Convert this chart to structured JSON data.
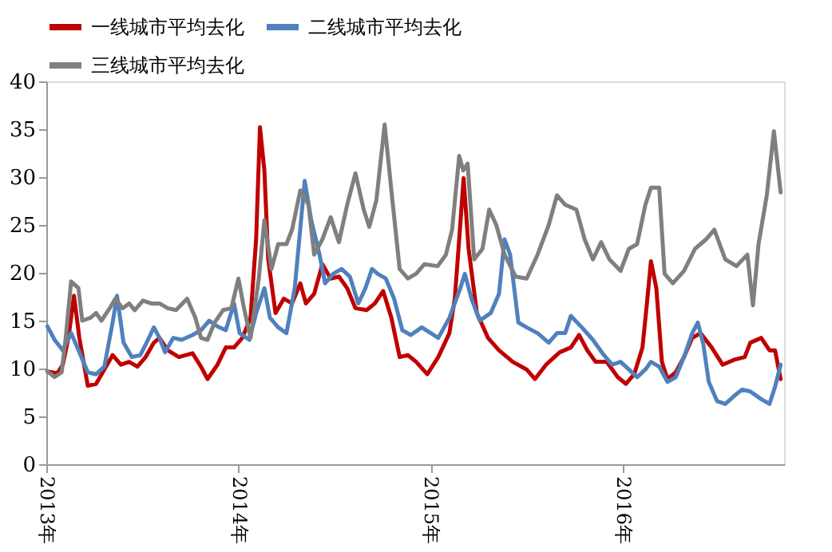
{
  "chart_data": {
    "type": "line",
    "xlim": [
      2013,
      2016.84
    ],
    "xticks": [
      {
        "value": 2013,
        "label": "2013年"
      },
      {
        "value": 2014,
        "label": "2014年"
      },
      {
        "value": 2015,
        "label": "2015年"
      },
      {
        "value": 2016,
        "label": "2016年"
      }
    ],
    "ylim": [
      0,
      40
    ],
    "yticks": [
      0,
      5,
      10,
      15,
      20,
      25,
      30,
      35,
      40
    ],
    "grid": false,
    "legend": "top",
    "line_style": "solid",
    "marker": "none",
    "series": [
      {
        "name": "一线城市平均去化",
        "color": "#c00000",
        "x": [
          2013.006,
          2013.057,
          2013.086,
          2013.115,
          2013.144,
          2013.172,
          2013.216,
          2013.259,
          2013.302,
          2013.345,
          2013.388,
          2013.431,
          2013.474,
          2013.517,
          2013.56,
          2013.589,
          2013.632,
          2013.69,
          2013.761,
          2013.805,
          2013.839,
          2013.891,
          2013.934,
          2013.977,
          2014.02,
          2014.063,
          2014.092,
          2014.112,
          2014.135,
          2014.155,
          2014.193,
          2014.236,
          2014.279,
          2014.322,
          2014.351,
          2014.394,
          2014.437,
          2014.48,
          2014.523,
          2014.566,
          2014.609,
          2014.667,
          2014.71,
          2014.753,
          2014.796,
          2014.839,
          2014.882,
          2014.925,
          2014.983,
          2015.04,
          2015.098,
          2015.126,
          2015.149,
          2015.172,
          2015.198,
          2015.241,
          2015.299,
          2015.356,
          2015.428,
          2015.5,
          2015.543,
          2015.601,
          2015.672,
          2015.73,
          2015.773,
          2015.816,
          2015.859,
          2015.917,
          2015.974,
          2016.017,
          2016.06,
          2016.103,
          2016.126,
          2016.147,
          2016.175,
          2016.204,
          2016.233,
          2016.276,
          2016.319,
          2016.362,
          2016.405,
          2016.463,
          2016.52,
          2016.578,
          2016.635,
          2016.664,
          2016.721,
          2016.764,
          2016.793,
          2016.822
        ],
        "values": [
          9.7,
          9.5,
          10.4,
          13.2,
          17.6,
          13.2,
          8.2,
          8.4,
          9.9,
          11.4,
          10.4,
          10.7,
          10.2,
          11.2,
          12.7,
          13.2,
          11.9,
          11.2,
          11.6,
          10.2,
          8.9,
          10.4,
          12.2,
          12.2,
          13.2,
          15.3,
          23.5,
          35.2,
          30.7,
          21.4,
          15.8,
          17.3,
          16.8,
          18.9,
          16.8,
          17.8,
          20.9,
          19.4,
          19.6,
          18.4,
          16.3,
          16.1,
          16.8,
          18.1,
          15.3,
          11.2,
          11.4,
          10.7,
          9.4,
          11.2,
          13.7,
          17.3,
          23.5,
          29.9,
          22.5,
          15.8,
          13.2,
          11.9,
          10.7,
          9.9,
          8.9,
          10.4,
          11.7,
          12.2,
          13.5,
          11.9,
          10.7,
          10.7,
          9.1,
          8.4,
          9.4,
          12.2,
          16.8,
          21.2,
          18.4,
          10.7,
          8.9,
          9.6,
          11.2,
          13.2,
          13.7,
          12.2,
          10.4,
          10.9,
          11.2,
          12.7,
          13.2,
          11.9,
          11.9,
          8.9
        ]
      },
      {
        "name": "二线城市平均去化",
        "color": "#4f81bd",
        "x": [
          2013.006,
          2013.043,
          2013.086,
          2013.129,
          2013.172,
          2013.216,
          2013.259,
          2013.302,
          2013.345,
          2013.368,
          2013.402,
          2013.445,
          2013.489,
          2013.517,
          2013.56,
          2013.589,
          2013.618,
          2013.661,
          2013.704,
          2013.761,
          2013.805,
          2013.848,
          2013.891,
          2013.934,
          2013.977,
          2014.006,
          2014.057,
          2014.092,
          2014.135,
          2014.164,
          2014.207,
          2014.25,
          2014.293,
          2014.345,
          2014.379,
          2014.422,
          2014.451,
          2014.494,
          2014.537,
          2014.58,
          2014.624,
          2014.661,
          2014.695,
          2014.724,
          2014.767,
          2014.81,
          2014.853,
          2014.897,
          2014.954,
          2015.04,
          2015.098,
          2015.155,
          2015.178,
          2015.213,
          2015.256,
          2015.313,
          2015.356,
          2015.385,
          2015.414,
          2015.457,
          2015.5,
          2015.557,
          2015.615,
          2015.658,
          2015.701,
          2015.73,
          2015.787,
          2015.845,
          2015.902,
          2015.945,
          2015.989,
          2016.032,
          2016.075,
          2016.118,
          2016.147,
          2016.19,
          2016.233,
          2016.276,
          2016.319,
          2016.362,
          2016.391,
          2016.42,
          2016.448,
          2016.491,
          2016.534,
          2016.578,
          2016.621,
          2016.664,
          2016.721,
          2016.764,
          2016.793,
          2016.822
        ],
        "values": [
          14.4,
          13.0,
          11.9,
          13.7,
          11.7,
          9.6,
          9.4,
          10.2,
          14.8,
          17.6,
          12.7,
          11.2,
          11.4,
          12.5,
          14.3,
          13.2,
          11.7,
          13.2,
          13.0,
          13.5,
          14.0,
          15.0,
          14.4,
          14.0,
          16.8,
          13.7,
          13.0,
          15.8,
          18.4,
          15.3,
          14.3,
          13.7,
          18.4,
          29.6,
          25.5,
          21.9,
          18.9,
          19.9,
          20.4,
          19.6,
          16.8,
          18.4,
          20.4,
          19.9,
          19.4,
          17.3,
          14.0,
          13.5,
          14.3,
          13.2,
          15.3,
          18.4,
          19.9,
          17.3,
          15.0,
          15.8,
          17.8,
          23.5,
          21.9,
          14.8,
          14.3,
          13.7,
          12.7,
          13.7,
          13.7,
          15.5,
          14.3,
          13.0,
          11.4,
          10.4,
          10.7,
          9.9,
          9.1,
          9.9,
          10.7,
          10.2,
          8.6,
          9.1,
          11.2,
          13.7,
          14.8,
          12.5,
          8.6,
          6.6,
          6.3,
          7.1,
          7.8,
          7.6,
          6.8,
          6.3,
          8.1,
          10.4
        ]
      },
      {
        "name": "三线城市平均去化",
        "color": "#7f7f7f",
        "x": [
          2013.006,
          2013.043,
          2013.08,
          2013.101,
          2013.129,
          2013.167,
          2013.187,
          2013.23,
          2013.259,
          2013.287,
          2013.33,
          2013.359,
          2013.397,
          2013.431,
          2013.46,
          2013.503,
          2013.546,
          2013.589,
          2013.632,
          2013.675,
          2013.733,
          2013.776,
          2013.805,
          2013.839,
          2013.876,
          2013.92,
          2013.963,
          2014.0,
          2014.029,
          2014.063,
          2014.106,
          2014.135,
          2014.172,
          2014.207,
          2014.25,
          2014.279,
          2014.322,
          2014.365,
          2014.394,
          2014.437,
          2014.48,
          2014.523,
          2014.566,
          2014.609,
          2014.652,
          2014.681,
          2014.718,
          2014.761,
          2014.796,
          2014.839,
          2014.882,
          2014.925,
          2014.968,
          2015.037,
          2015.08,
          2015.112,
          2015.149,
          2015.17,
          2015.193,
          2015.227,
          2015.27,
          2015.305,
          2015.342,
          2015.385,
          2015.443,
          2015.5,
          2015.557,
          2015.615,
          2015.658,
          2015.701,
          2015.759,
          2015.802,
          2015.845,
          2015.888,
          2015.931,
          2015.989,
          2016.032,
          2016.075,
          2016.118,
          2016.147,
          2016.19,
          2016.218,
          2016.261,
          2016.319,
          2016.376,
          2016.434,
          2016.477,
          2016.534,
          2016.592,
          2016.649,
          2016.678,
          2016.707,
          2016.75,
          2016.787,
          2016.822
        ],
        "values": [
          9.7,
          9.1,
          9.6,
          13.2,
          19.1,
          18.4,
          15.0,
          15.3,
          15.8,
          15.0,
          16.3,
          17.3,
          16.3,
          16.8,
          16.1,
          17.1,
          16.8,
          16.8,
          16.3,
          16.1,
          17.3,
          15.3,
          13.2,
          13.0,
          14.8,
          16.1,
          16.3,
          19.4,
          16.3,
          13.2,
          19.4,
          25.5,
          20.4,
          23.0,
          23.0,
          24.5,
          28.6,
          27.1,
          21.9,
          23.5,
          25.8,
          23.2,
          27.1,
          30.4,
          26.6,
          24.8,
          27.6,
          35.5,
          28.6,
          20.4,
          19.4,
          19.9,
          20.9,
          20.7,
          21.9,
          24.5,
          32.2,
          30.7,
          31.4,
          21.4,
          22.5,
          26.6,
          25.0,
          21.9,
          19.6,
          19.4,
          21.9,
          25.0,
          28.1,
          27.1,
          26.6,
          23.5,
          21.4,
          23.2,
          21.4,
          20.2,
          22.5,
          23.0,
          27.1,
          28.9,
          28.9,
          19.9,
          18.9,
          20.2,
          22.5,
          23.5,
          24.5,
          21.4,
          20.7,
          21.9,
          16.6,
          23.0,
          28.1,
          34.8,
          28.4
        ]
      }
    ]
  }
}
